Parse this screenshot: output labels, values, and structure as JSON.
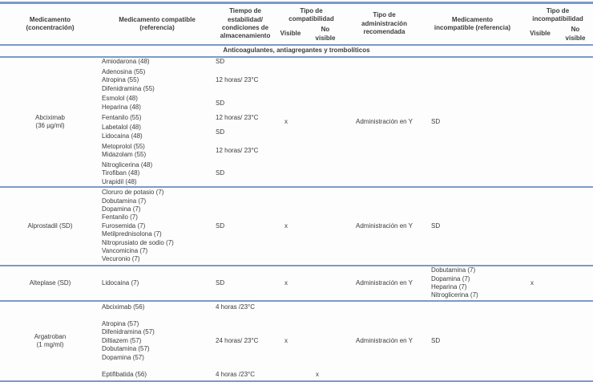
{
  "section_title": "Anticoagulantes, antiagregantes y trombolíticos",
  "colors": {
    "rule_blue": "#7b9ac9",
    "text": "#3b3b3b"
  },
  "header": {
    "medicamento": "Medicamento\n(concentración)",
    "compatible": "Medicamento compatible\n(referencia)",
    "tiempo": "Tiempo de\nestabilidad/\ncondiciones de\nalmacenamiento",
    "tipo_compat": "Tipo de\ncompatibilidad",
    "compat_visible": "Visible",
    "compat_no_visible": "No\nvisible",
    "administracion": "Tipo de\nadministración\nrecomendada",
    "incompatible": "Medicamento\nincompatible (referencia)",
    "tipo_incompat": "Tipo de\nincompatibilidad",
    "incompat_visible": "Visible",
    "incompat_no_visible": "No\nvisible"
  },
  "blocks": [
    {
      "drug": "Abciximab\n(36 µg/ml)",
      "groups": [
        {
          "meds": [
            "Amiodarona (48)"
          ],
          "time": "SD"
        },
        {
          "meds": [
            "Adenosina (55)",
            "Atropina (55)",
            "Difenidramina (55)"
          ],
          "time": "12 horas/ 23°C"
        },
        {
          "meds": [
            "Esmolol (48)",
            "Heparina (48)"
          ],
          "time": "SD"
        },
        {
          "meds": [
            "Fentanilo (55)"
          ],
          "time": "12 horas/ 23°C"
        },
        {
          "meds": [
            "Labetalol (48)",
            "Lidocaina (48)"
          ],
          "time": "SD"
        },
        {
          "meds": [
            "Metoprolol (55)",
            "Midazolam (55)"
          ],
          "time": "12 horas/ 23°C"
        },
        {
          "meds": [
            "Nitroglicerina (48)",
            "Tirofiban (48)",
            "Urapidil (48)"
          ],
          "time": "SD"
        }
      ],
      "compat_visible": "x",
      "compat_no_visible": "",
      "admin": "Administración en Y",
      "incompat": [
        "SD"
      ],
      "incompat_visible": "",
      "incompat_no_visible": ""
    },
    {
      "drug": "Alprostadil (SD)",
      "groups": [
        {
          "meds": [
            "Cloruro de potasio (7)",
            "Dobutamina (7)",
            "Dopamina (7)",
            "Fentanilo (7)",
            "Furosemida (7)",
            "Metilprednisolona (7)",
            "Nitroprusiato de sodio (7)",
            "Vancomicina (7)",
            "Vecuronio (7)"
          ],
          "time": "SD"
        }
      ],
      "compat_visible": "x",
      "compat_no_visible": "",
      "admin": "Administración en Y",
      "incompat": [
        "SD"
      ],
      "incompat_visible": "",
      "incompat_no_visible": ""
    },
    {
      "drug": "Alteplase (SD)",
      "groups": [
        {
          "meds": [
            "Lidocaina (7)"
          ],
          "time": "SD"
        }
      ],
      "compat_visible": "x",
      "compat_no_visible": "",
      "admin": "Administración en Y",
      "incompat": [
        "Dobutamina (7)",
        "Dopamina (7)",
        "Heparina (7)",
        "Nitroglicerina (7)"
      ],
      "incompat_visible": "x",
      "incompat_no_visible": ""
    },
    {
      "drug": "Argatroban\n(1 mg/ml)",
      "groups": [
        {
          "meds": [
            "Abciximab (56)"
          ],
          "time": "4 horas /23°C"
        },
        {
          "meds": [
            "Atropina (57)",
            "Difenidramina (57)",
            "Diltiazem (57)",
            "Dobutamina (57)",
            "Dopamina (57)"
          ],
          "time": "24 horas/ 23°C"
        },
        {
          "meds": [
            "Eptifibatida (56)"
          ],
          "time": "4 horas /23°C",
          "compat_no_visible": "x"
        }
      ],
      "compat_visible": "x",
      "compat_no_visible": "",
      "admin": "Administración en Y",
      "incompat": [
        "SD"
      ],
      "incompat_visible": "",
      "incompat_no_visible": ""
    }
  ]
}
